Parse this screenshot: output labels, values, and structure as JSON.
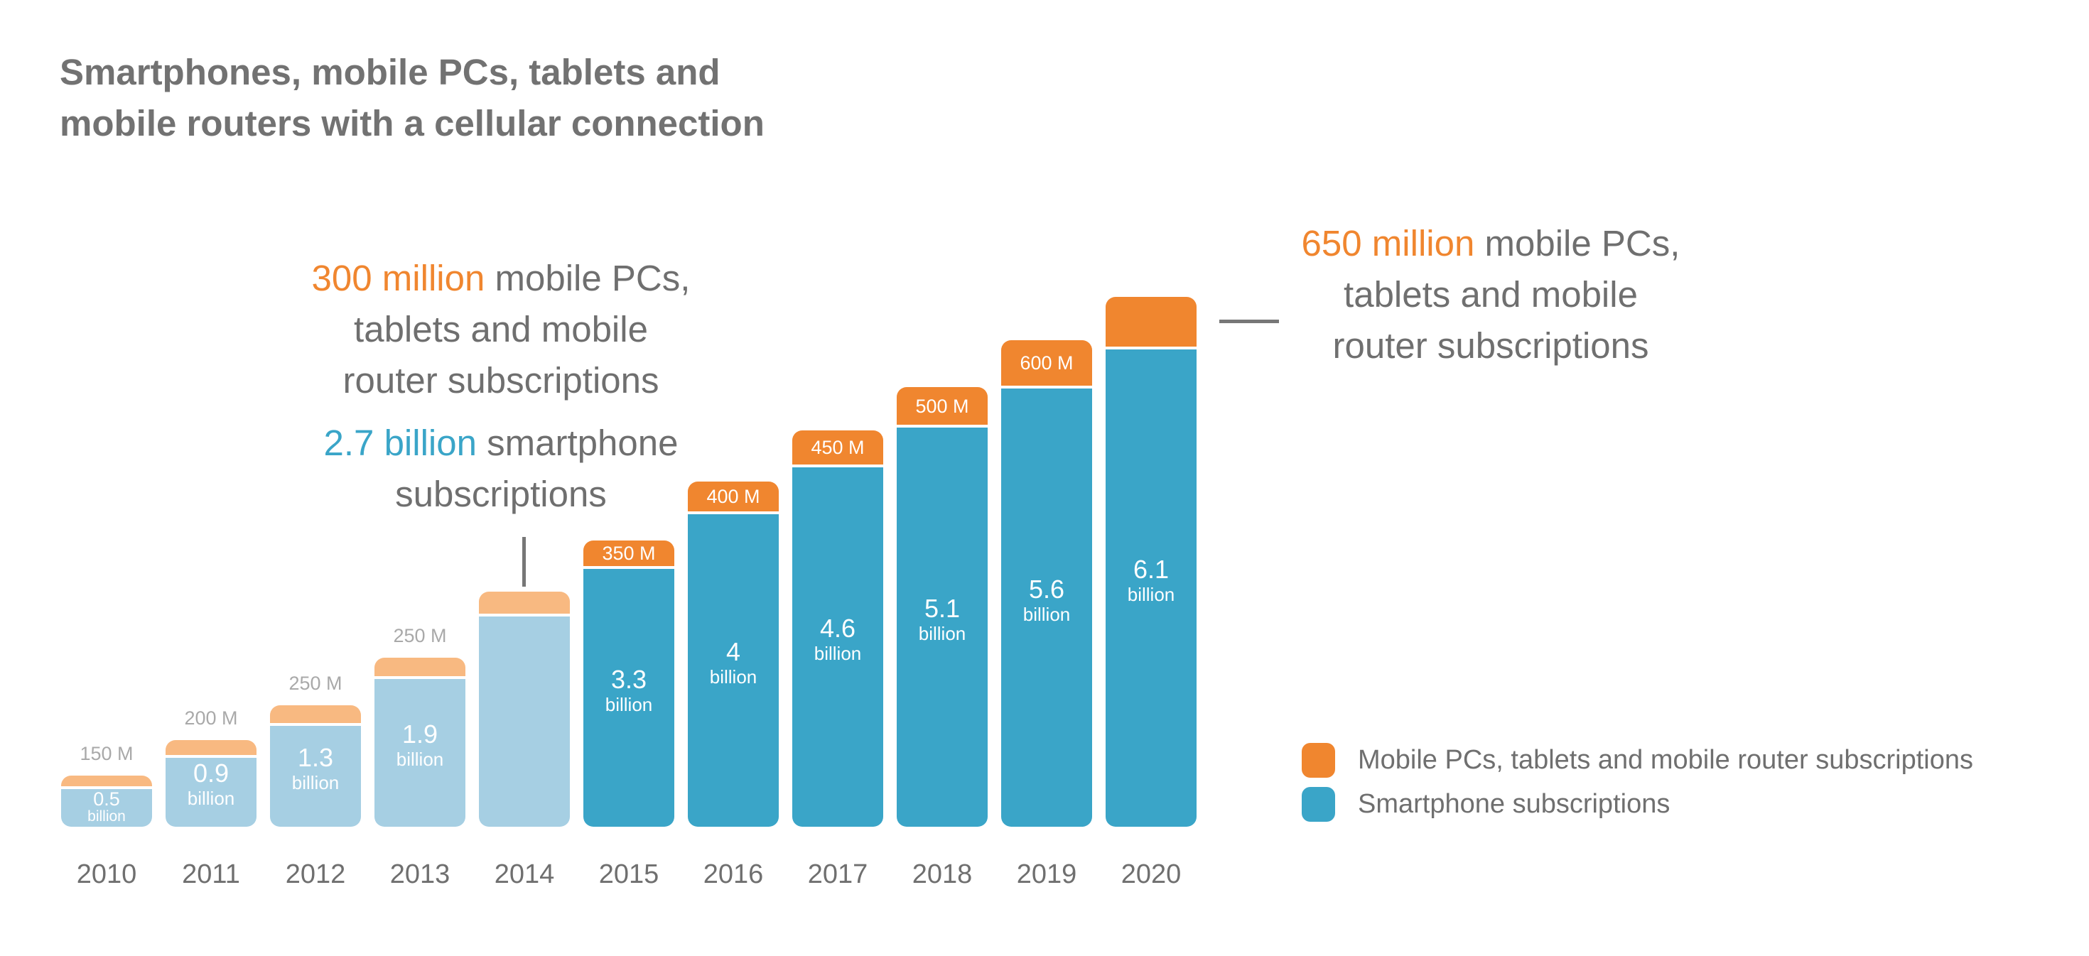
{
  "chart_data": {
    "type": "bar",
    "stacked": true,
    "title": "Smartphones, mobile PCs, tablets and mobile routers with a cellular connection",
    "title_lines": [
      "Smartphones, mobile PCs, tablets and",
      "mobile routers with a cellular connection"
    ],
    "categories": [
      "2010",
      "2011",
      "2012",
      "2013",
      "2014",
      "2015",
      "2016",
      "2017",
      "2018",
      "2019",
      "2020"
    ],
    "unit": "billion subscriptions",
    "series": [
      {
        "name": "Smartphone subscriptions",
        "values": [
          0.5,
          0.9,
          1.3,
          1.9,
          2.7,
          3.3,
          4,
          4.6,
          5.1,
          5.6,
          6.1
        ],
        "labels": [
          "0.5",
          "0.9",
          "1.3",
          "1.9",
          "",
          "3.3",
          "4",
          "4.6",
          "5.1",
          "5.6",
          "6.1"
        ],
        "label_unit": "billion"
      },
      {
        "name": "Mobile PCs, tablets and mobile router subscriptions",
        "values": [
          0.15,
          0.2,
          0.25,
          0.25,
          0.3,
          0.35,
          0.4,
          0.45,
          0.5,
          0.6,
          0.65
        ],
        "labels": [
          "150 M",
          "200 M",
          "250 M",
          "250 M",
          "",
          "350 M",
          "400 M",
          "450 M",
          "500 M",
          "600 M",
          ""
        ]
      }
    ],
    "forecast_from": "2015",
    "grid": false,
    "legend_position": "right",
    "colors": {
      "smartphone": "#3AA5C8",
      "smartphone_light": "#A6CFE3",
      "other": "#F0862F",
      "other_light": "#F8B981",
      "text": "#6f6f6f",
      "muted_label": "#a9a9a9"
    },
    "annotations": {
      "y2014": {
        "other_highlight": "300 million",
        "other_rest": " mobile PCs,",
        "other_lines": [
          "tablets and mobile",
          "router subscriptions"
        ],
        "smart_highlight": "2.7 billion",
        "smart_rest": " smartphone",
        "smart_lines": [
          "subscriptions"
        ]
      },
      "y2020": {
        "highlight": "650 million",
        "rest": " mobile PCs,",
        "lines": [
          "tablets and mobile",
          "router subscriptions"
        ]
      }
    }
  }
}
